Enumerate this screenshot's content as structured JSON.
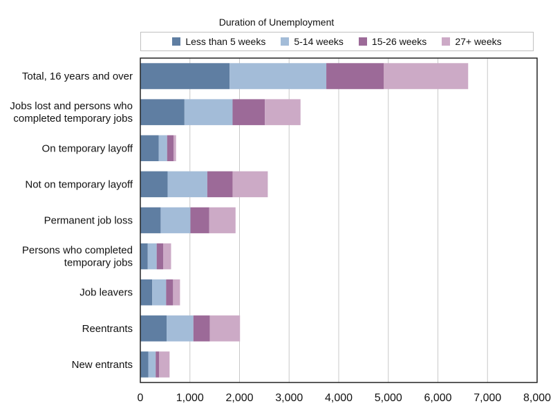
{
  "chart_data": {
    "type": "bar",
    "orientation": "horizontal",
    "stacked": true,
    "legend_title": "Duration of Unemployment",
    "legend_position": "top",
    "categories": [
      "Total, 16 years and over",
      "Jobs lost and persons who completed temporary jobs",
      "On temporary layoff",
      "Not on temporary layoff",
      "Permanent job loss",
      "Persons who completed temporary jobs",
      "Job leavers",
      "Reentrants",
      "New entrants"
    ],
    "category_lines": [
      [
        "Total, 16 years and over"
      ],
      [
        "Jobs lost and persons who",
        "completed temporary jobs"
      ],
      [
        "On temporary layoff"
      ],
      [
        "Not on temporary layoff"
      ],
      [
        "Permanent job loss"
      ],
      [
        "Persons who completed",
        "temporary jobs"
      ],
      [
        "Job leavers"
      ],
      [
        "Reentrants"
      ],
      [
        "New entrants"
      ]
    ],
    "series": [
      {
        "name": "Less than 5 weeks",
        "color": "#5f7ea2",
        "values": [
          1800,
          890,
          370,
          550,
          410,
          150,
          240,
          530,
          160
        ]
      },
      {
        "name": "5-14 weeks",
        "color": "#a3bcd8",
        "values": [
          1950,
          970,
          170,
          800,
          600,
          180,
          280,
          540,
          150
        ]
      },
      {
        "name": "15-26 weeks",
        "color": "#9c6a98",
        "values": [
          1160,
          650,
          130,
          510,
          380,
          130,
          140,
          330,
          70
        ]
      },
      {
        "name": "27+ weeks",
        "color": "#ccaac6",
        "values": [
          1700,
          720,
          50,
          710,
          530,
          160,
          140,
          610,
          210
        ]
      }
    ],
    "xlim": [
      0,
      8000
    ],
    "xticks": [
      0,
      1000,
      2000,
      3000,
      4000,
      5000,
      6000,
      7000,
      8000
    ],
    "xtick_labels": [
      "0",
      "1,000",
      "2,000",
      "3,000",
      "4,000",
      "5,000",
      "6,000",
      "7,000",
      "8,000"
    ],
    "grid": true
  }
}
